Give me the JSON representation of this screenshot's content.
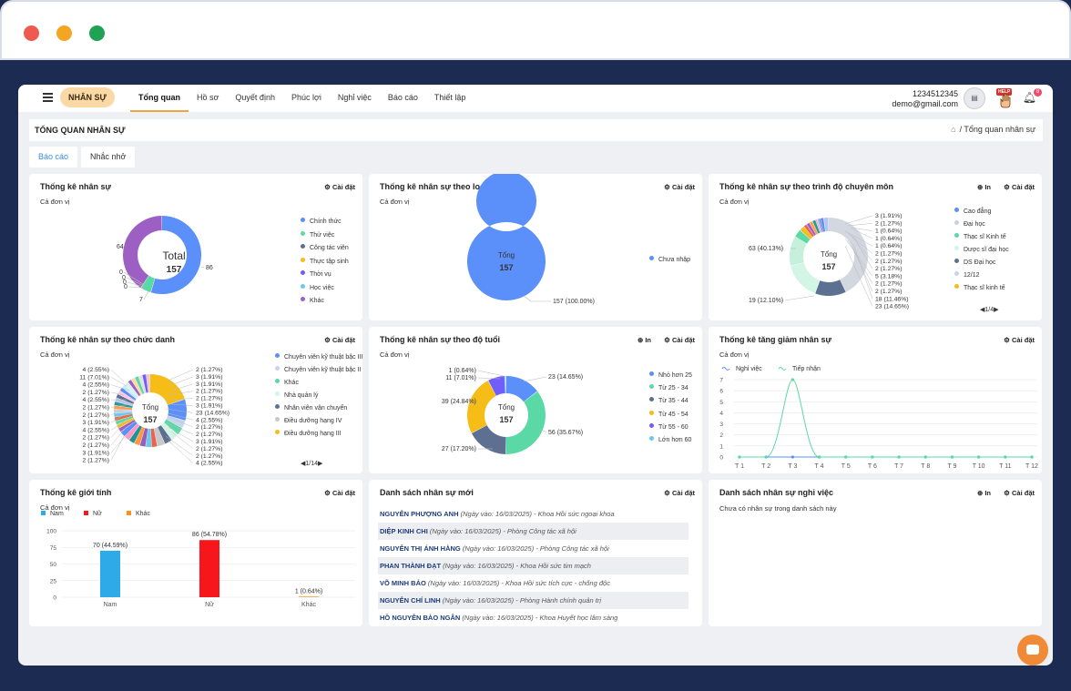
{
  "header": {
    "module": "NHÂN SỰ",
    "nav": [
      "Tổng quan",
      "Hồ sơ",
      "Quyết định",
      "Phúc lợi",
      "Nghỉ việc",
      "Báo cáo",
      "Thiết lập"
    ],
    "user_phone": "1234512345",
    "user_email": "demo@gmail.com",
    "help_label": "HELP",
    "notification_count": "8"
  },
  "page": {
    "title": "TỔNG QUAN NHÂN SỰ",
    "breadcrumb": "Tổng quan nhân sự",
    "tabs": [
      "Báo cáo",
      "Nhắc nhở"
    ]
  },
  "common": {
    "unit": "Cả đơn vị",
    "settings": "Cài đặt",
    "print": "In",
    "total_label": "Tổng",
    "total_label_big": "Total"
  },
  "cards": {
    "staff_stats": {
      "title": "Thống kê nhân sự"
    },
    "by_object": {
      "title": "Thống kê nhân sự theo loại đối tượng"
    },
    "by_degree": {
      "title": "Thống kê nhân sự theo trình độ chuyên môn",
      "pager": "1/4"
    },
    "by_position": {
      "title": "Thống kê nhân sự theo chức danh",
      "pager": "1/14"
    },
    "by_age": {
      "title": "Thống kê nhân sự theo độ tuổi"
    },
    "trend": {
      "title": "Thống kê tăng giảm nhân sự"
    },
    "gender": {
      "title": "Thống kê giới tính"
    },
    "new_staff": {
      "title": "Danh sách nhân sự mới"
    },
    "leavers": {
      "title": "Danh sách nhân sự nghỉ việc",
      "empty": "Chưa có nhân sự trong danh sách này"
    }
  },
  "chart_data": [
    {
      "type": "pie",
      "title": "Thống kê nhân sự",
      "total": 157,
      "categories": [
        "Chính thức",
        "Thử việc",
        "Công tác viên",
        "Thực tập sinh",
        "Thời vụ",
        "Học việc",
        "Khác"
      ],
      "values": [
        86,
        7,
        0,
        0,
        0,
        0,
        64
      ],
      "colors": [
        "#5b8ff9",
        "#5ad8a6",
        "#5d7092",
        "#f6bd16",
        "#6f5ef9",
        "#6dc8ec",
        "#9e5fc5"
      ],
      "labels": [
        "86",
        "7",
        "0",
        "0",
        "0",
        "0",
        "64"
      ],
      "legend": "right"
    },
    {
      "type": "pie",
      "title": "Thống kê nhân sự theo loại đối tượng",
      "total": 157,
      "categories": [
        "Chưa nhập"
      ],
      "values": [
        157
      ],
      "colors": [
        "#5b8ff9"
      ],
      "labels": [
        "157 (100.00%)"
      ],
      "legend": "right"
    },
    {
      "type": "pie",
      "title": "Thống kê nhân sự theo trình độ chuyên môn",
      "total": 157,
      "legend_items": [
        "Cao đẳng",
        "Đại học",
        "Thạc sĩ Kinh tế",
        "Dược sĩ đại học",
        "DS Đại học",
        "12/12",
        "Thạc sĩ kinh tế"
      ],
      "legend_colors": [
        "#5b8ff9",
        "#c8d0e4",
        "#5ad8a6",
        "#d3f5e6",
        "#5d7092",
        "#c5d5ee",
        "#f6bd16"
      ],
      "values": [
        63,
        19,
        23,
        18,
        5,
        3,
        2,
        2,
        2,
        2,
        1,
        1,
        1,
        2,
        3
      ],
      "colors": [
        "#d3d7e0",
        "#5d7092",
        "#d3f5e6",
        "#c5f0dc",
        "#5ad8a6",
        "#f6bd16",
        "#e86452",
        "#9e5fc5",
        "#ff9d4d",
        "#269a99",
        "#ff99c3",
        "#6dc8ec",
        "#945fb9",
        "#5b8ff9",
        "#b6c6f0"
      ],
      "labels_left": [
        "63 (40.13%)",
        "19 (12.10%)"
      ],
      "labels_right": [
        "3 (1.91%)",
        "2 (1.27%)",
        "1 (0.64%)",
        "1 (0.64%)",
        "1 (0.64%)",
        "2 (1.27%)",
        "2 (1.27%)",
        "2 (1.27%)",
        "5 (3.18%)",
        "2 (1.27%)",
        "2 (1.27%)",
        "18 (11.46%)",
        "23 (14.65%)"
      ]
    },
    {
      "type": "pie",
      "title": "Thống kê nhân sự theo chức danh",
      "total": 157,
      "legend_items": [
        "Chuyên viên kỹ thuật bậc III",
        "Chuyên viên kỹ thuật bậc II",
        "Khác",
        "Nhà quản lý",
        "Nhân viên vận chuyển",
        "Điều dưỡng hạng IV",
        "Điều dưỡng hạng III"
      ],
      "legend_colors": [
        "#5b8ff9",
        "#c5d5ee",
        "#5ad8a6",
        "#d3f5e6",
        "#5d7092",
        "#c8c8c8",
        "#f6bd16"
      ],
      "labels_left": [
        "4 (2.55%)",
        "11 (7.01%)",
        "4 (2.55%)",
        "2 (1.27%)",
        "4 (2.55%)",
        "2 (1.27%)",
        "2 (1.27%)",
        "3 (1.91%)",
        "4 (2.55%)",
        "2 (1.27%)",
        "2 (1.27%)",
        "3 (1.91%)",
        "2 (1.27%)"
      ],
      "labels_right": [
        "2 (1.27%)",
        "3 (1.91%)",
        "3 (1.91%)",
        "2 (1.27%)",
        "2 (1.27%)",
        "3 (1.91%)",
        "23 (14.65%)",
        "4 (2.55%)",
        "2 (1.27%)",
        "2 (1.27%)",
        "3 (1.91%)",
        "2 (1.27%)",
        "2 (1.27%)",
        "4 (2.55%)"
      ],
      "values": [
        23,
        11,
        4,
        4,
        4,
        4,
        4,
        3,
        3,
        3,
        3,
        3,
        3,
        3,
        2,
        2,
        2,
        2,
        2,
        2,
        2,
        2,
        2,
        2,
        2,
        2,
        2,
        2,
        2,
        2,
        2,
        2,
        2,
        2
      ],
      "colors": [
        "#f6bd16",
        "#5b8ff9",
        "#c5d5ee",
        "#5ad8a6",
        "#d3f5e6",
        "#5d7092",
        "#c8c8c8",
        "#e86452",
        "#6dc8ec",
        "#945fb9",
        "#ff9845",
        "#1e9493",
        "#ff99c3",
        "#5b8ff9",
        "#9e5fc5",
        "#f6bd16",
        "#5ad8a6",
        "#e8684a",
        "#6dc8ec",
        "#c8d0e4",
        "#ff9d4d",
        "#269a99",
        "#b6c6f0",
        "#5d7092",
        "#ffc6e0",
        "#5b8ff9",
        "#cfe9ff",
        "#d3f5e6",
        "#9e5fc5",
        "#ffd8a8",
        "#5ad8a6",
        "#e0e0e0",
        "#6f5ef9",
        "#f4c4c4"
      ]
    },
    {
      "type": "pie",
      "title": "Thống kê nhân sự theo độ tuổi",
      "total": 157,
      "categories": [
        "Nhỏ hơn 25",
        "Từ 25 - 34",
        "Từ 35 - 44",
        "Từ 45 - 54",
        "Từ 55 - 60",
        "Lớn hơn 60"
      ],
      "values": [
        23,
        56,
        27,
        39,
        11,
        1
      ],
      "colors": [
        "#5b8ff9",
        "#5ad8a6",
        "#5d7092",
        "#f6bd16",
        "#6f5ef9",
        "#6dc8ec"
      ],
      "labels": [
        "23 (14.65%)",
        "56 (35.67%)",
        "27 (17.20%)",
        "39 (24.84%)",
        "11 (7.01%)",
        "1 (0.64%)"
      ]
    },
    {
      "type": "line",
      "title": "Thống kê tăng giảm nhân sự",
      "x": [
        "T 1",
        "T 2",
        "T 3",
        "T 4",
        "T 5",
        "T 6",
        "T 7",
        "T 8",
        "T 9",
        "T 10",
        "T 11",
        "T 12"
      ],
      "series": [
        {
          "name": "Nghỉ việc",
          "color": "#5b8ff9",
          "values": [
            0,
            0,
            0,
            0,
            0,
            0,
            0,
            0,
            0,
            0,
            0,
            0
          ]
        },
        {
          "name": "Tiếp nhận",
          "color": "#5ad8a6",
          "values": [
            0,
            0,
            7,
            0,
            0,
            0,
            0,
            0,
            0,
            0,
            0,
            0
          ]
        }
      ],
      "ylim": [
        0,
        7
      ],
      "yticks": [
        0,
        1,
        2,
        3,
        4,
        5,
        6,
        7
      ]
    },
    {
      "type": "bar",
      "title": "Thống kê giới tính",
      "categories": [
        "Nam",
        "Nữ",
        "Khác"
      ],
      "values": [
        70,
        86,
        1
      ],
      "labels": [
        "70 (44.59%)",
        "86 (54.78%)",
        "1 (0.64%)"
      ],
      "colors": [
        "#2faae8",
        "#f6161c",
        "#f7941d"
      ],
      "ylim": [
        0,
        100
      ],
      "yticks": [
        0,
        25,
        50,
        75,
        100
      ]
    }
  ],
  "new_staff": [
    {
      "name": "NGUYỄN PHƯỢNG ANH",
      "meta": "(Ngày vào: 16/03/2025)",
      "dept": "- Khoa Hồi sức ngoại khoa"
    },
    {
      "name": "DIỆP KINH CHI",
      "meta": "(Ngày vào: 16/03/2025)",
      "dept": "- Phòng Công tác xã hội"
    },
    {
      "name": "NGUYỄN THỊ ÁNH HẰNG",
      "meta": "(Ngày vào: 16/03/2025)",
      "dept": "- Phòng Công tác xã hội"
    },
    {
      "name": "PHAN THÀNH ĐẠT",
      "meta": "(Ngày vào: 16/03/2025)",
      "dept": "- Khoa Hồi sức tim mạch"
    },
    {
      "name": "VÕ MINH BẢO",
      "meta": "(Ngày vào: 16/03/2025)",
      "dept": "- Khoa Hồi sức tích cực - chống độc"
    },
    {
      "name": "NGUYỄN CHÍ LINH",
      "meta": "(Ngày vào: 16/03/2025)",
      "dept": "- Phòng Hành chính quản trị"
    },
    {
      "name": "HỒ NGUYỄN BẢO NGÂN",
      "meta": "(Ngày vào: 16/03/2025)",
      "dept": "- Khoa Huyết học lâm sàng"
    }
  ]
}
